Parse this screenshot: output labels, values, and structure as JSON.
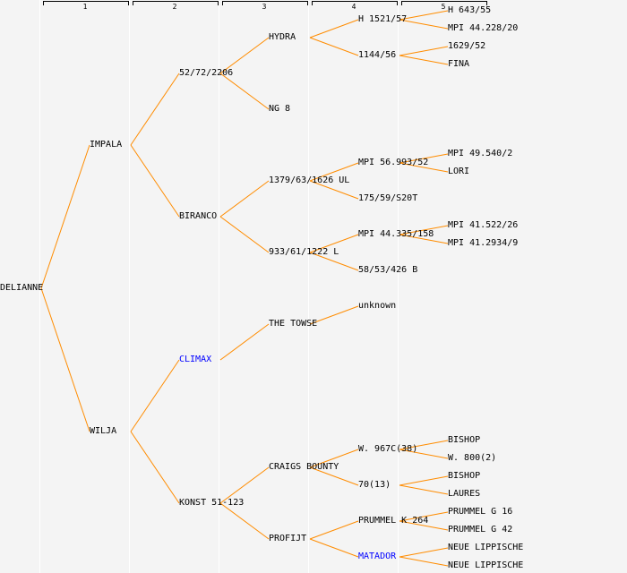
{
  "column_headers": [
    "1",
    "2",
    "3",
    "4",
    "5"
  ],
  "colors": {
    "line": "#ff8c00",
    "text": "#000000",
    "highlight": "#0000ff",
    "background": "#f4f4f4"
  },
  "generations": [
    [
      {
        "name": "DELIANNE"
      }
    ],
    [
      {
        "name": "IMPALA"
      },
      {
        "name": "WILJA"
      }
    ],
    [
      {
        "name": "52/72/2206"
      },
      {
        "name": "BIRANCO"
      },
      {
        "name": "CLIMAX",
        "highlight": true
      },
      {
        "name": "KONST 51-123"
      }
    ],
    [
      {
        "name": "HYDRA"
      },
      {
        "name": "NG 8"
      },
      {
        "name": "1379/63/1626 UL"
      },
      {
        "name": "933/61/1222 L"
      },
      {
        "name": "THE TOWSE"
      },
      null,
      {
        "name": "CRAIGS BOUNTY"
      },
      {
        "name": "PROFIJT"
      }
    ],
    [
      {
        "name": "H 1521/57"
      },
      {
        "name": "1144/56"
      },
      null,
      null,
      {
        "name": "MPI 56.993/52"
      },
      {
        "name": "175/59/S20T"
      },
      {
        "name": "MPI 44.335/158"
      },
      {
        "name": "58/53/426 B"
      },
      {
        "name": "unknown"
      },
      null,
      null,
      null,
      {
        "name": "W. 967C(38)"
      },
      {
        "name": "70(13)"
      },
      {
        "name": "PRUMMEL K 264"
      },
      {
        "name": "MATADOR",
        "highlight": true
      }
    ],
    [
      {
        "name": "H 643/55"
      },
      {
        "name": "MPI 44.228/20"
      },
      {
        "name": "1629/52"
      },
      {
        "name": "FINA"
      },
      null,
      null,
      null,
      null,
      {
        "name": "MPI 49.540/2"
      },
      {
        "name": "LORI"
      },
      null,
      null,
      {
        "name": "MPI 41.522/26"
      },
      {
        "name": "MPI 41.2934/9"
      },
      null,
      null,
      null,
      null,
      null,
      null,
      null,
      null,
      null,
      null,
      {
        "name": "BISHOP"
      },
      {
        "name": "W. 800(2)"
      },
      {
        "name": "BISHOP"
      },
      {
        "name": "LAURES"
      },
      {
        "name": "PRUMMEL G 16"
      },
      {
        "name": "PRUMMEL G 42"
      },
      {
        "name": "NEUE LIPPISCHE"
      },
      {
        "name": "NEUE LIPPISCHE"
      }
    ]
  ]
}
